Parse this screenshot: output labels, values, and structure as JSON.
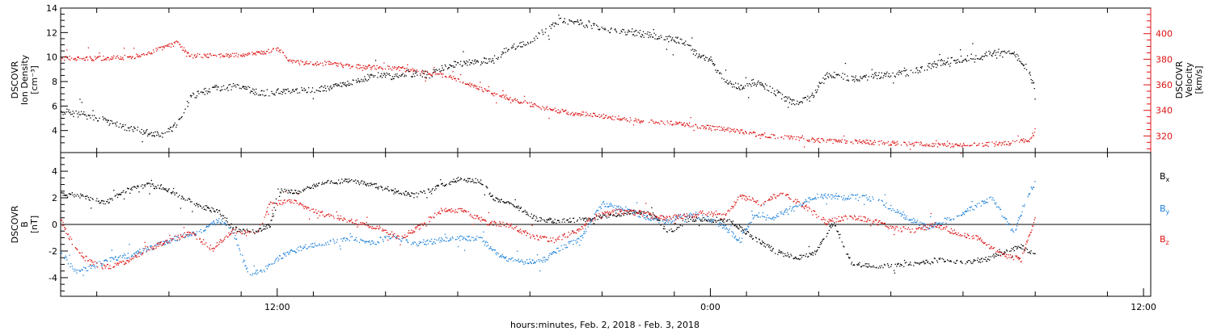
{
  "colors": {
    "black": "#000000",
    "red": "#dd1111",
    "blue": "#1a7fd8"
  },
  "bottom_label": "hours:minutes, Feb.  2, 2018 - Feb.  3, 2018",
  "x_tick_labels": [
    "12:00",
    "0:00",
    "12:00"
  ],
  "chart_data": [
    {
      "type": "scatter",
      "panel": "top",
      "xlabel": "hours:minutes, Feb.  2, 2018 - Feb.  3, 2018",
      "x_unit": "hours since 2018-02-02 00:00",
      "xlim": [
        6.0,
        36.2
      ],
      "ylabel_left": [
        "DSCOVR",
        "Ion Density",
        "[cm⁻³]"
      ],
      "ylabel_right": [
        "DSCOVR",
        "Velocity",
        "[km/s]"
      ],
      "ylim_left": [
        2.2,
        14.0
      ],
      "ylim_right": [
        307,
        420
      ],
      "yticks_left": [
        4,
        6,
        8,
        10,
        12,
        14
      ],
      "yticks_right": [
        320,
        340,
        360,
        380,
        400
      ],
      "grid": false,
      "series": [
        {
          "axis": "left",
          "color": "#000000",
          "points": [
            [
              6.0,
              5.6
            ],
            [
              6.8,
              5.2
            ],
            [
              7.6,
              4.5
            ],
            [
              8.2,
              4.0
            ],
            [
              8.8,
              3.6
            ],
            [
              9.2,
              4.5
            ],
            [
              9.6,
              6.8
            ],
            [
              10.2,
              7.5
            ],
            [
              10.8,
              7.6
            ],
            [
              11.6,
              7.1
            ],
            [
              12.4,
              7.3
            ],
            [
              13.0,
              7.4
            ],
            [
              13.6,
              7.6
            ],
            [
              14.0,
              8.0
            ],
            [
              14.8,
              8.6
            ],
            [
              15.2,
              8.4
            ],
            [
              15.6,
              8.7
            ],
            [
              16.2,
              8.6
            ],
            [
              16.8,
              9.4
            ],
            [
              17.4,
              9.6
            ],
            [
              18.0,
              9.8
            ],
            [
              18.4,
              10.8
            ],
            [
              18.9,
              11.2
            ],
            [
              19.3,
              12.0
            ],
            [
              19.8,
              13.0
            ],
            [
              20.4,
              12.8
            ],
            [
              21.2,
              12.3
            ],
            [
              22.0,
              12.0
            ],
            [
              22.6,
              11.6
            ],
            [
              23.2,
              11.4
            ],
            [
              23.6,
              10.3
            ],
            [
              24.0,
              9.8
            ],
            [
              24.4,
              8.0
            ],
            [
              24.8,
              7.6
            ],
            [
              25.2,
              8.0
            ],
            [
              25.6,
              7.5
            ],
            [
              26.0,
              6.8
            ],
            [
              26.4,
              6.2
            ],
            [
              26.8,
              6.8
            ],
            [
              27.2,
              8.6
            ],
            [
              28.0,
              8.3
            ],
            [
              28.8,
              8.6
            ],
            [
              29.6,
              8.8
            ],
            [
              30.4,
              9.6
            ],
            [
              31.2,
              10.0
            ],
            [
              31.8,
              10.3
            ],
            [
              32.3,
              10.6
            ],
            [
              32.8,
              9.0
            ],
            [
              33.0,
              7.2
            ]
          ]
        },
        {
          "axis": "right",
          "color": "#dd1111",
          "points": [
            [
              6.0,
              381
            ],
            [
              7.0,
              381
            ],
            [
              8.0,
              382
            ],
            [
              8.6,
              387
            ],
            [
              9.2,
              393
            ],
            [
              9.6,
              383
            ],
            [
              10.6,
              383
            ],
            [
              11.4,
              385
            ],
            [
              12.0,
              388
            ],
            [
              12.4,
              378
            ],
            [
              13.4,
              377
            ],
            [
              14.0,
              375
            ],
            [
              14.6,
              374
            ],
            [
              15.4,
              373
            ],
            [
              16.0,
              370
            ],
            [
              16.6,
              368
            ],
            [
              17.2,
              362
            ],
            [
              17.8,
              355
            ],
            [
              18.4,
              350
            ],
            [
              19.0,
              345
            ],
            [
              19.6,
              341
            ],
            [
              20.2,
              338
            ],
            [
              21.0,
              336
            ],
            [
              22.0,
              332
            ],
            [
              23.0,
              330
            ],
            [
              24.0,
              327
            ],
            [
              25.0,
              323
            ],
            [
              25.8,
              320
            ],
            [
              26.8,
              317
            ],
            [
              27.8,
              316
            ],
            [
              28.8,
              315
            ],
            [
              29.8,
              314
            ],
            [
              30.8,
              313
            ],
            [
              31.8,
              314
            ],
            [
              32.4,
              315
            ],
            [
              32.9,
              318
            ],
            [
              33.0,
              327
            ]
          ]
        }
      ]
    },
    {
      "type": "scatter",
      "panel": "bottom",
      "x_unit": "hours since 2018-02-02 00:00",
      "xlim": [
        6.0,
        36.2
      ],
      "ylabel_left": [
        "DSCOVR",
        "B",
        "[nT]"
      ],
      "ylim": [
        -5.4,
        5.4
      ],
      "yticks": [
        -4,
        -2,
        0,
        2,
        4
      ],
      "zero_line": true,
      "grid": false,
      "legend": [
        {
          "label": "B",
          "sub": "x",
          "color": "#000000"
        },
        {
          "label": "B",
          "sub": "y",
          "color": "#1a7fd8"
        },
        {
          "label": "B",
          "sub": "z",
          "color": "#dd1111"
        }
      ],
      "series": [
        {
          "name": "Bx",
          "color": "#000000",
          "points": [
            [
              6.0,
              2.3
            ],
            [
              6.6,
              2.2
            ],
            [
              7.2,
              1.6
            ],
            [
              7.8,
              2.6
            ],
            [
              8.4,
              3.0
            ],
            [
              8.8,
              2.8
            ],
            [
              9.4,
              2.0
            ],
            [
              9.8,
              1.5
            ],
            [
              10.4,
              0.9
            ],
            [
              10.8,
              -0.3
            ],
            [
              11.4,
              -0.5
            ],
            [
              11.8,
              0.0
            ],
            [
              12.0,
              2.6
            ],
            [
              12.6,
              2.4
            ],
            [
              13.2,
              3.2
            ],
            [
              14.0,
              3.3
            ],
            [
              14.6,
              3.0
            ],
            [
              15.2,
              2.6
            ],
            [
              15.8,
              2.2
            ],
            [
              16.4,
              2.8
            ],
            [
              17.0,
              3.4
            ],
            [
              17.6,
              3.3
            ],
            [
              18.0,
              2.0
            ],
            [
              18.6,
              1.4
            ],
            [
              19.2,
              0.4
            ],
            [
              19.8,
              0.3
            ],
            [
              20.6,
              0.4
            ],
            [
              21.2,
              0.7
            ],
            [
              21.8,
              1.0
            ],
            [
              22.4,
              0.8
            ],
            [
              22.8,
              -0.6
            ],
            [
              23.4,
              0.4
            ],
            [
              24.0,
              0.4
            ],
            [
              24.6,
              0.2
            ],
            [
              25.2,
              -1.0
            ],
            [
              25.8,
              -2.0
            ],
            [
              26.4,
              -2.5
            ],
            [
              26.9,
              -2.1
            ],
            [
              27.4,
              0.2
            ],
            [
              27.9,
              -2.9
            ],
            [
              28.6,
              -3.1
            ],
            [
              29.2,
              -3.0
            ],
            [
              29.8,
              -2.9
            ],
            [
              30.4,
              -2.6
            ],
            [
              31.0,
              -2.8
            ],
            [
              31.6,
              -2.6
            ],
            [
              32.2,
              -2.0
            ],
            [
              32.6,
              -1.6
            ],
            [
              33.0,
              -2.3
            ]
          ]
        },
        {
          "name": "By",
          "color": "#1a7fd8",
          "points": [
            [
              6.0,
              -2.0
            ],
            [
              6.4,
              -3.6
            ],
            [
              6.8,
              -3.2
            ],
            [
              7.4,
              -2.6
            ],
            [
              8.0,
              -2.2
            ],
            [
              8.6,
              -1.6
            ],
            [
              9.2,
              -1.0
            ],
            [
              9.8,
              -0.6
            ],
            [
              10.4,
              0.4
            ],
            [
              10.8,
              -0.8
            ],
            [
              11.2,
              -3.8
            ],
            [
              11.6,
              -3.4
            ],
            [
              12.2,
              -2.2
            ],
            [
              12.8,
              -1.6
            ],
            [
              13.4,
              -1.3
            ],
            [
              14.0,
              -1.0
            ],
            [
              14.6,
              -1.4
            ],
            [
              15.2,
              -0.8
            ],
            [
              15.8,
              -1.4
            ],
            [
              16.4,
              -1.2
            ],
            [
              17.0,
              -1.0
            ],
            [
              17.6,
              -1.0
            ],
            [
              18.2,
              -2.4
            ],
            [
              18.8,
              -2.8
            ],
            [
              19.4,
              -2.6
            ],
            [
              19.8,
              -1.8
            ],
            [
              20.4,
              -1.0
            ],
            [
              21.0,
              1.6
            ],
            [
              21.6,
              1.2
            ],
            [
              22.2,
              0.6
            ],
            [
              22.8,
              0.2
            ],
            [
              23.2,
              0.8
            ],
            [
              23.8,
              0.6
            ],
            [
              24.4,
              -0.2
            ],
            [
              24.8,
              -1.2
            ],
            [
              25.2,
              0.8
            ],
            [
              25.8,
              0.6
            ],
            [
              26.4,
              1.5
            ],
            [
              27.0,
              2.2
            ],
            [
              27.6,
              2.0
            ],
            [
              28.2,
              2.2
            ],
            [
              28.8,
              1.6
            ],
            [
              29.4,
              0.6
            ],
            [
              30.0,
              -0.2
            ],
            [
              30.6,
              0.4
            ],
            [
              31.2,
              1.2
            ],
            [
              31.8,
              2.0
            ],
            [
              32.4,
              -0.6
            ],
            [
              32.8,
              2.4
            ],
            [
              33.0,
              3.2
            ]
          ]
        },
        {
          "name": "Bz",
          "color": "#dd1111",
          "points": [
            [
              6.0,
              0.3
            ],
            [
              6.4,
              -1.8
            ],
            [
              6.8,
              -2.8
            ],
            [
              7.2,
              -3.2
            ],
            [
              7.8,
              -2.8
            ],
            [
              8.4,
              -1.8
            ],
            [
              9.0,
              -1.2
            ],
            [
              9.6,
              -0.6
            ],
            [
              10.2,
              -1.8
            ],
            [
              10.8,
              -0.4
            ],
            [
              11.4,
              -0.8
            ],
            [
              11.8,
              1.6
            ],
            [
              12.4,
              1.8
            ],
            [
              13.0,
              1.0
            ],
            [
              13.6,
              0.6
            ],
            [
              14.2,
              0.2
            ],
            [
              14.8,
              -0.2
            ],
            [
              15.4,
              -1.0
            ],
            [
              16.0,
              0.0
            ],
            [
              16.6,
              1.2
            ],
            [
              17.2,
              1.0
            ],
            [
              17.8,
              0.2
            ],
            [
              18.4,
              0.0
            ],
            [
              19.0,
              -0.8
            ],
            [
              19.6,
              -1.2
            ],
            [
              20.2,
              -0.6
            ],
            [
              20.8,
              0.6
            ],
            [
              21.4,
              1.0
            ],
            [
              22.0,
              0.9
            ],
            [
              22.6,
              0.5
            ],
            [
              23.2,
              0.6
            ],
            [
              23.8,
              0.9
            ],
            [
              24.4,
              0.6
            ],
            [
              24.8,
              2.2
            ],
            [
              25.4,
              1.6
            ],
            [
              26.0,
              2.4
            ],
            [
              26.6,
              1.4
            ],
            [
              27.2,
              0.2
            ],
            [
              27.8,
              0.6
            ],
            [
              28.4,
              0.4
            ],
            [
              29.0,
              -0.2
            ],
            [
              29.6,
              -0.4
            ],
            [
              30.2,
              0.0
            ],
            [
              30.8,
              -0.6
            ],
            [
              31.4,
              -1.0
            ],
            [
              32.0,
              -2.2
            ],
            [
              32.6,
              -2.6
            ],
            [
              33.0,
              0.6
            ]
          ]
        }
      ]
    }
  ]
}
